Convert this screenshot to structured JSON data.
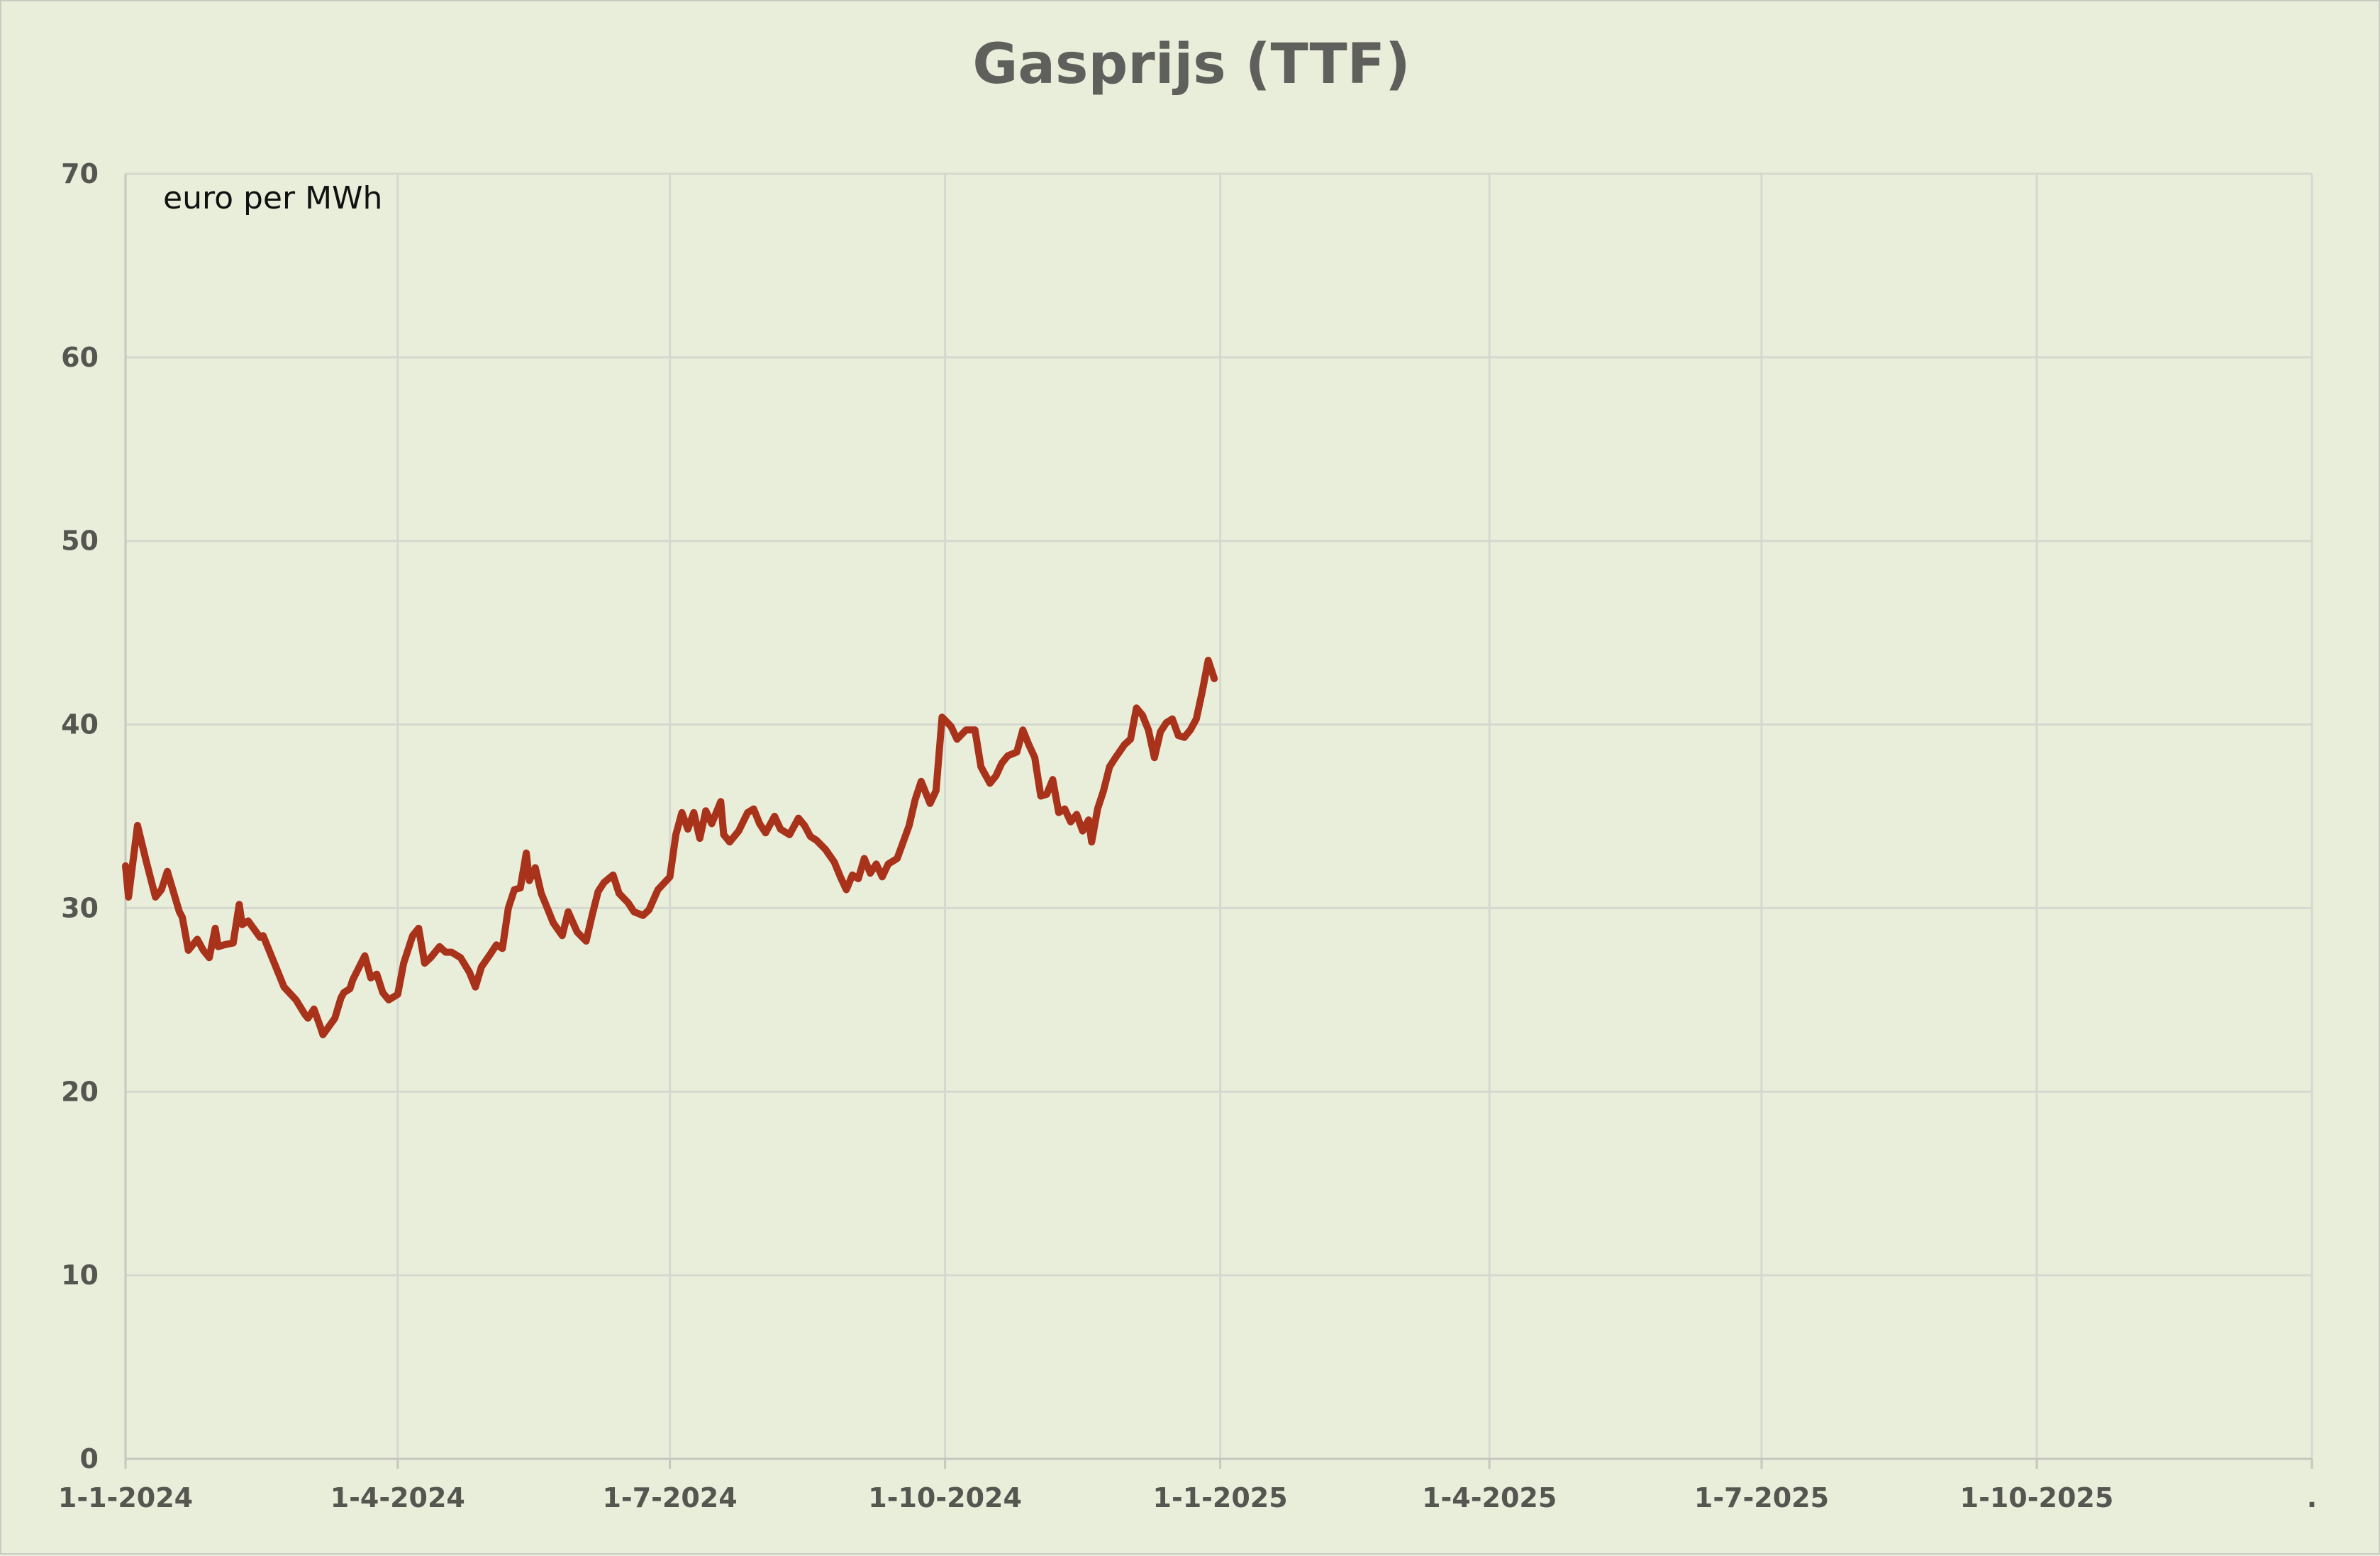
{
  "chart_data": {
    "type": "line",
    "title": "Gasprijs (TTF)",
    "unit_label": "euro per MWh",
    "xlabel": "",
    "ylabel": "",
    "ylim": [
      0,
      70
    ],
    "y_ticks": [
      "0",
      "10",
      "20",
      "30",
      "40",
      "50",
      "60",
      "70"
    ],
    "x_ticks": [
      "1-1-2024",
      "1-4-2024",
      "1-7-2024",
      "1-10-2024",
      "1-1-2025",
      "1-4-2025",
      "1-7-2025",
      "1-10-2025",
      "."
    ],
    "x_tick_dates": [
      "2024-01-01",
      "2024-04-01",
      "2024-07-01",
      "2024-10-01",
      "2025-01-01",
      "2025-04-01",
      "2025-07-01",
      "2025-10-01",
      "2026-01-01"
    ],
    "grid": true,
    "line_color": "#a9321a",
    "background_color": "#e9eedb",
    "series": [
      {
        "name": "",
        "points": [
          [
            "2024-01-01",
            32.3
          ],
          [
            "2024-01-02",
            30.6
          ],
          [
            "2024-01-05",
            34.5
          ],
          [
            "2024-01-08",
            32.5
          ],
          [
            "2024-01-11",
            30.6
          ],
          [
            "2024-01-13",
            31.0
          ],
          [
            "2024-01-15",
            32.0
          ],
          [
            "2024-01-19",
            29.8
          ],
          [
            "2024-01-20",
            29.5
          ],
          [
            "2024-01-22",
            27.7
          ],
          [
            "2024-01-25",
            28.3
          ],
          [
            "2024-01-27",
            27.7
          ],
          [
            "2024-01-29",
            27.3
          ],
          [
            "2024-01-31",
            28.9
          ],
          [
            "2024-02-01",
            27.9
          ],
          [
            "2024-02-03",
            28.0
          ],
          [
            "2024-02-06",
            28.1
          ],
          [
            "2024-02-08",
            30.2
          ],
          [
            "2024-02-09",
            29.1
          ],
          [
            "2024-02-11",
            29.3
          ],
          [
            "2024-02-15",
            28.4
          ],
          [
            "2024-02-16",
            28.5
          ],
          [
            "2024-02-20",
            26.9
          ],
          [
            "2024-02-23",
            25.7
          ],
          [
            "2024-02-27",
            25.0
          ],
          [
            "2024-03-01",
            24.2
          ],
          [
            "2024-03-02",
            24.0
          ],
          [
            "2024-03-04",
            24.5
          ],
          [
            "2024-03-06",
            23.6
          ],
          [
            "2024-03-07",
            23.1
          ],
          [
            "2024-03-11",
            24.0
          ],
          [
            "2024-03-13",
            25.1
          ],
          [
            "2024-03-14",
            25.4
          ],
          [
            "2024-03-16",
            25.6
          ],
          [
            "2024-03-17",
            26.1
          ],
          [
            "2024-03-21",
            27.4
          ],
          [
            "2024-03-23",
            26.2
          ],
          [
            "2024-03-25",
            26.4
          ],
          [
            "2024-03-27",
            25.4
          ],
          [
            "2024-03-29",
            25.0
          ],
          [
            "2024-04-01",
            25.3
          ],
          [
            "2024-04-03",
            27.0
          ],
          [
            "2024-04-06",
            28.5
          ],
          [
            "2024-04-08",
            28.9
          ],
          [
            "2024-04-10",
            27.0
          ],
          [
            "2024-04-12",
            27.3
          ],
          [
            "2024-04-15",
            27.9
          ],
          [
            "2024-04-17",
            27.6
          ],
          [
            "2024-04-19",
            27.6
          ],
          [
            "2024-04-22",
            27.3
          ],
          [
            "2024-04-25",
            26.5
          ],
          [
            "2024-04-27",
            25.7
          ],
          [
            "2024-04-29",
            26.8
          ],
          [
            "2024-05-02",
            27.5
          ],
          [
            "2024-05-04",
            28.0
          ],
          [
            "2024-05-06",
            27.8
          ],
          [
            "2024-05-08",
            30.0
          ],
          [
            "2024-05-10",
            31.0
          ],
          [
            "2024-05-12",
            31.1
          ],
          [
            "2024-05-14",
            33.0
          ],
          [
            "2024-05-15",
            31.5
          ],
          [
            "2024-05-17",
            32.2
          ],
          [
            "2024-05-19",
            30.8
          ],
          [
            "2024-05-21",
            30.0
          ],
          [
            "2024-05-23",
            29.2
          ],
          [
            "2024-05-26",
            28.5
          ],
          [
            "2024-05-28",
            29.8
          ],
          [
            "2024-05-31",
            28.7
          ],
          [
            "2024-06-03",
            28.2
          ],
          [
            "2024-06-05",
            29.6
          ],
          [
            "2024-06-07",
            30.9
          ],
          [
            "2024-06-09",
            31.4
          ],
          [
            "2024-06-12",
            31.8
          ],
          [
            "2024-06-14",
            30.8
          ],
          [
            "2024-06-17",
            30.3
          ],
          [
            "2024-06-19",
            29.8
          ],
          [
            "2024-06-22",
            29.6
          ],
          [
            "2024-06-24",
            29.9
          ],
          [
            "2024-06-27",
            31.0
          ],
          [
            "2024-07-01",
            31.7
          ],
          [
            "2024-07-03",
            34.0
          ],
          [
            "2024-07-05",
            35.2
          ],
          [
            "2024-07-07",
            34.3
          ],
          [
            "2024-07-09",
            35.2
          ],
          [
            "2024-07-11",
            33.8
          ],
          [
            "2024-07-13",
            35.3
          ],
          [
            "2024-07-15",
            34.6
          ],
          [
            "2024-07-18",
            35.8
          ],
          [
            "2024-07-19",
            34.0
          ],
          [
            "2024-07-21",
            33.6
          ],
          [
            "2024-07-24",
            34.2
          ],
          [
            "2024-07-27",
            35.2
          ],
          [
            "2024-07-29",
            35.4
          ],
          [
            "2024-07-31",
            34.6
          ],
          [
            "2024-08-02",
            34.1
          ],
          [
            "2024-08-05",
            35.0
          ],
          [
            "2024-08-07",
            34.3
          ],
          [
            "2024-08-10",
            34.0
          ],
          [
            "2024-08-13",
            34.9
          ],
          [
            "2024-08-15",
            34.5
          ],
          [
            "2024-08-17",
            33.9
          ],
          [
            "2024-08-19",
            33.7
          ],
          [
            "2024-08-22",
            33.2
          ],
          [
            "2024-08-25",
            32.5
          ],
          [
            "2024-08-27",
            31.7
          ],
          [
            "2024-08-29",
            31.0
          ],
          [
            "2024-08-31",
            31.8
          ],
          [
            "2024-09-02",
            31.6
          ],
          [
            "2024-09-04",
            32.7
          ],
          [
            "2024-09-06",
            31.9
          ],
          [
            "2024-09-08",
            32.4
          ],
          [
            "2024-09-10",
            31.7
          ],
          [
            "2024-09-12",
            32.4
          ],
          [
            "2024-09-15",
            32.7
          ],
          [
            "2024-09-17",
            33.6
          ],
          [
            "2024-09-19",
            34.5
          ],
          [
            "2024-09-21",
            35.9
          ],
          [
            "2024-09-23",
            36.9
          ],
          [
            "2024-09-26",
            35.7
          ],
          [
            "2024-09-28",
            36.4
          ],
          [
            "2024-09-30",
            40.4
          ],
          [
            "2024-10-03",
            39.9
          ],
          [
            "2024-10-05",
            39.2
          ],
          [
            "2024-10-08",
            39.7
          ],
          [
            "2024-10-11",
            39.7
          ],
          [
            "2024-10-13",
            37.7
          ],
          [
            "2024-10-16",
            36.8
          ],
          [
            "2024-10-18",
            37.2
          ],
          [
            "2024-10-20",
            37.9
          ],
          [
            "2024-10-22",
            38.3
          ],
          [
            "2024-10-25",
            38.5
          ],
          [
            "2024-10-27",
            39.7
          ],
          [
            "2024-10-29",
            38.9
          ],
          [
            "2024-10-31",
            38.2
          ],
          [
            "2024-11-02",
            36.1
          ],
          [
            "2024-11-04",
            36.2
          ],
          [
            "2024-11-06",
            37.0
          ],
          [
            "2024-11-08",
            35.2
          ],
          [
            "2024-11-10",
            35.4
          ],
          [
            "2024-11-12",
            34.7
          ],
          [
            "2024-11-14",
            35.1
          ],
          [
            "2024-11-16",
            34.2
          ],
          [
            "2024-11-18",
            34.8
          ],
          [
            "2024-11-19",
            33.6
          ],
          [
            "2024-11-21",
            35.4
          ],
          [
            "2024-11-23",
            36.4
          ],
          [
            "2024-11-25",
            37.7
          ],
          [
            "2024-11-27",
            38.2
          ],
          [
            "2024-11-30",
            38.9
          ],
          [
            "2024-12-02",
            39.2
          ],
          [
            "2024-12-04",
            40.9
          ],
          [
            "2024-12-06",
            40.5
          ],
          [
            "2024-12-08",
            39.7
          ],
          [
            "2024-12-10",
            38.2
          ],
          [
            "2024-12-12",
            39.6
          ],
          [
            "2024-12-14",
            40.1
          ],
          [
            "2024-12-16",
            40.3
          ],
          [
            "2024-12-18",
            39.4
          ],
          [
            "2024-12-20",
            39.3
          ],
          [
            "2024-12-22",
            39.7
          ],
          [
            "2024-12-24",
            40.3
          ],
          [
            "2024-12-26",
            41.8
          ],
          [
            "2024-12-28",
            43.5
          ],
          [
            "2024-12-30",
            42.5
          ]
        ]
      }
    ]
  }
}
